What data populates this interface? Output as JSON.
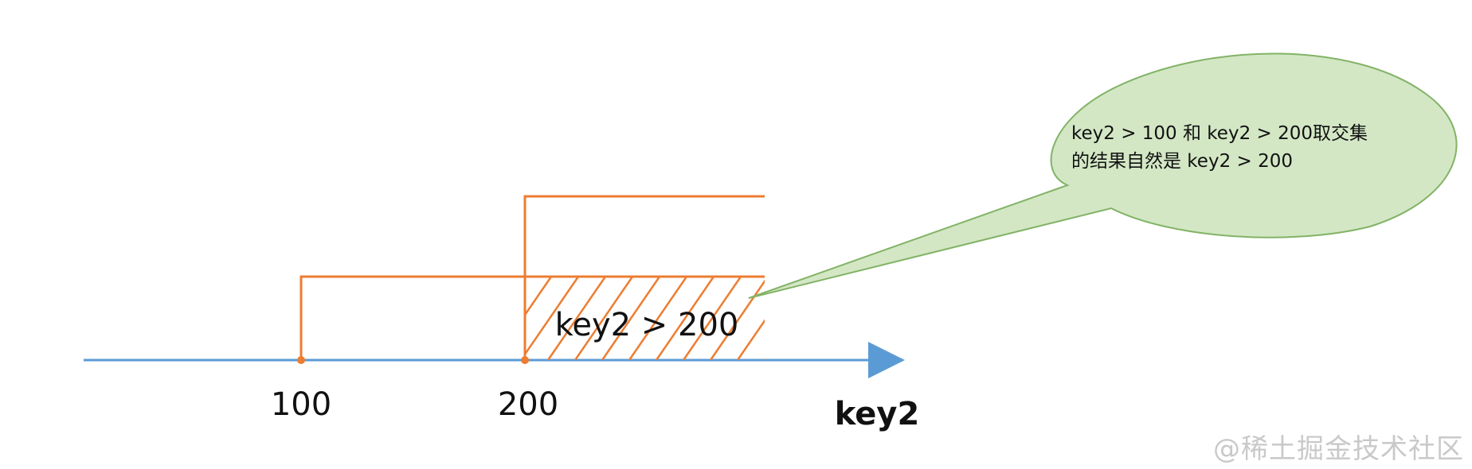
{
  "diagram": {
    "axis_label": "key2",
    "ticks": [
      {
        "label": "100"
      },
      {
        "label": "200"
      }
    ],
    "range_label": "key2 > 200",
    "callout": {
      "line1": "key2 > 100 和 key2 > 200取交集",
      "line2": "的结果自然是 key2 > 200"
    }
  },
  "colors": {
    "axis": "#5b9bd5",
    "range": "#ed7d31",
    "callout_fill": "#d3e7c5",
    "callout_stroke": "#82b366",
    "text": "#111111"
  },
  "watermark": "@稀土掘金技术社区"
}
